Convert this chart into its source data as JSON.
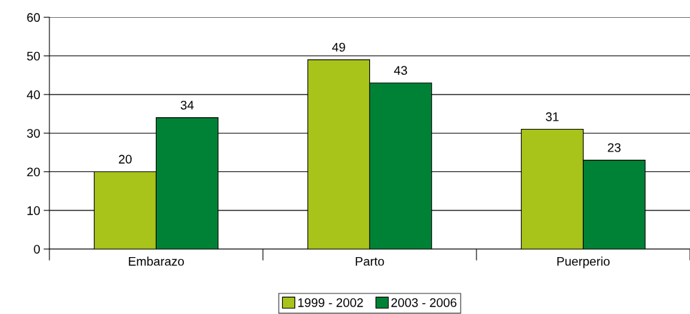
{
  "chart_data": {
    "type": "bar",
    "categories": [
      "Embarazo",
      "Parto",
      "Puerperio"
    ],
    "series": [
      {
        "name": "1999 - 2002",
        "color": "#a8c31a",
        "values": [
          20,
          49,
          31
        ]
      },
      {
        "name": "2003 - 2006",
        "color": "#008236",
        "values": [
          34,
          43,
          23
        ]
      }
    ],
    "ylim": [
      0,
      60
    ],
    "yticks": [
      0,
      10,
      20,
      30,
      40,
      50,
      60
    ],
    "grid": "y",
    "legend": "bottom",
    "data_labels": true
  }
}
